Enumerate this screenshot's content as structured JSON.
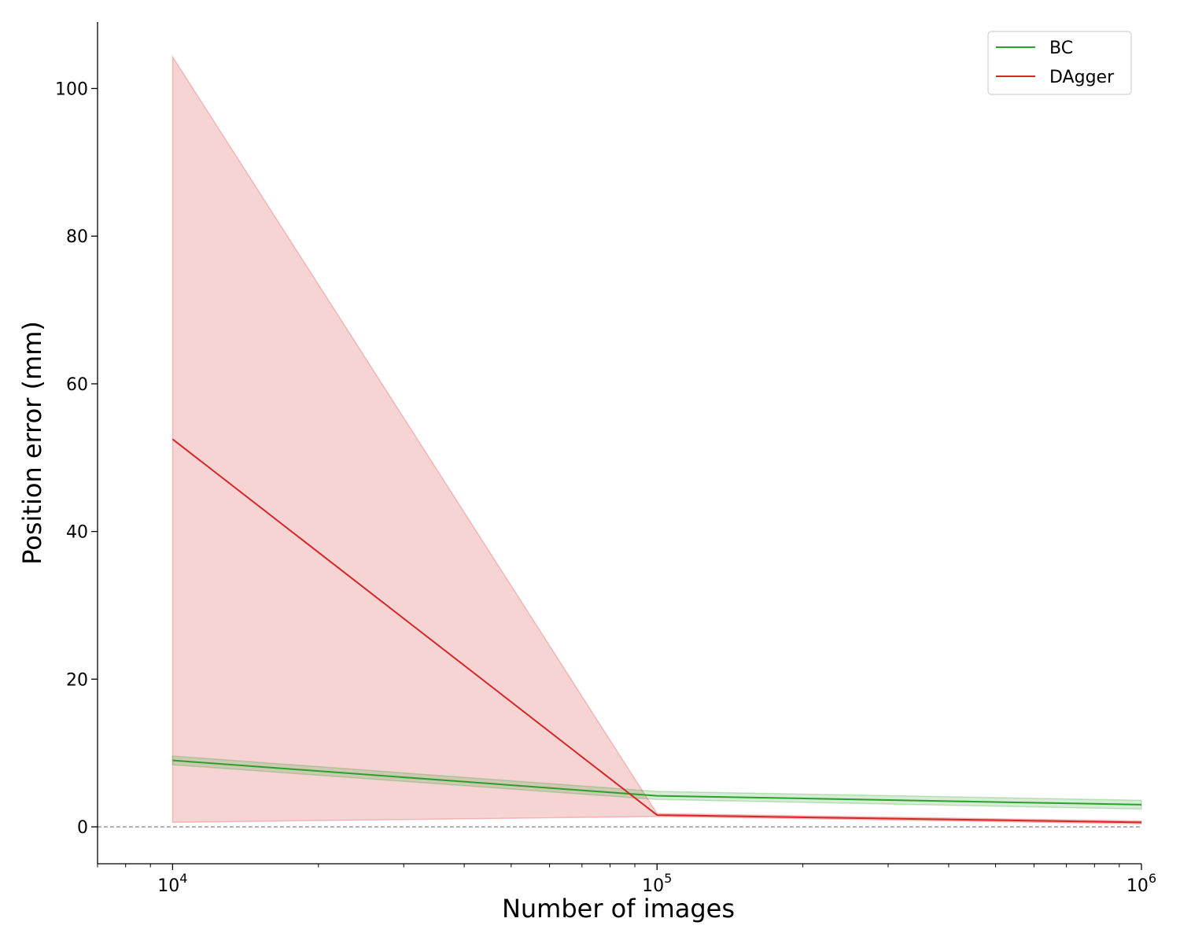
{
  "chart_data": {
    "type": "line",
    "title": "",
    "xlabel": "Number of images",
    "ylabel": "Position error (mm)",
    "x_scale": "log",
    "xlim": [
      7000,
      1000000
    ],
    "ylim": [
      -5,
      109
    ],
    "x_ticks": [
      {
        "value": 10000,
        "base": "10",
        "exp": "4"
      },
      {
        "value": 100000,
        "base": "10",
        "exp": "5"
      },
      {
        "value": 1000000,
        "base": "10",
        "exp": "6"
      }
    ],
    "y_ticks": [
      0,
      20,
      40,
      60,
      80,
      100
    ],
    "y_tick_labels": [
      "0",
      "20",
      "40",
      "60",
      "80",
      "100"
    ],
    "reference_line": {
      "y": 0,
      "style": "dashed",
      "color": "#777777"
    },
    "grid": false,
    "legend_position": "top-right",
    "x": [
      10000,
      100000,
      1000000
    ],
    "series": [
      {
        "name": "BC",
        "color": "#2ca02c",
        "values": [
          9.0,
          4.2,
          3.0
        ],
        "lower": [
          8.4,
          3.7,
          2.4
        ],
        "upper": [
          9.6,
          4.8,
          3.6
        ]
      },
      {
        "name": "DAgger",
        "color": "#d62728",
        "values": [
          52.5,
          1.6,
          0.6
        ],
        "lower": [
          0.6,
          1.4,
          0.4
        ],
        "upper": [
          104.3,
          1.8,
          0.8
        ]
      }
    ]
  }
}
